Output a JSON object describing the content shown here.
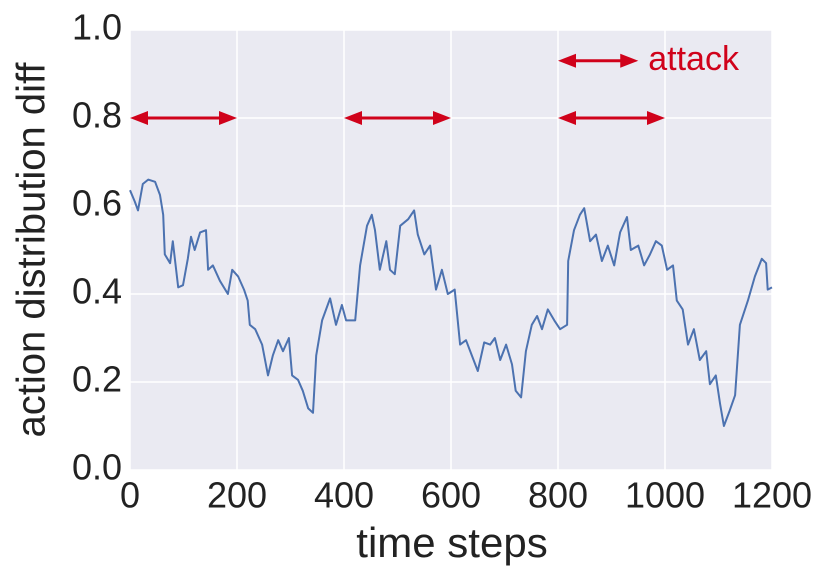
{
  "chart_data": {
    "type": "line",
    "xlabel": "time steps",
    "ylabel": "action distribution diff",
    "color": "#4c72b0",
    "x": [
      0,
      9,
      15,
      24,
      34,
      47,
      56,
      62,
      65,
      75,
      80,
      90,
      99,
      108,
      114,
      121,
      131,
      142,
      146,
      155,
      168,
      183,
      191,
      202,
      213,
      220,
      224,
      234,
      247,
      258,
      267,
      277,
      286,
      297,
      303,
      314,
      323,
      333,
      342,
      348,
      359,
      374,
      385,
      396,
      404,
      421,
      430,
      443,
      452,
      458,
      467,
      479,
      486,
      495,
      505,
      520,
      531,
      538,
      550,
      561,
      572,
      583,
      594,
      607,
      617,
      628,
      639,
      650,
      662,
      673,
      682,
      692,
      703,
      714,
      721,
      731,
      740,
      751,
      761,
      770,
      781,
      793,
      804,
      817,
      819,
      830,
      841,
      849,
      860,
      871,
      882,
      893,
      905,
      916,
      929,
      936,
      950,
      961,
      972,
      983,
      994,
      1004,
      1015,
      1022,
      1033,
      1043,
      1054,
      1065,
      1077,
      1084,
      1095,
      1103,
      1110,
      1121,
      1131,
      1140,
      1155,
      1168,
      1181,
      1189,
      1192,
      1200
    ],
    "values": [
      0.636,
      0.61,
      0.59,
      0.65,
      0.66,
      0.655,
      0.625,
      0.58,
      0.49,
      0.47,
      0.52,
      0.415,
      0.42,
      0.48,
      0.53,
      0.5,
      0.54,
      0.545,
      0.455,
      0.465,
      0.43,
      0.4,
      0.455,
      0.44,
      0.41,
      0.385,
      0.33,
      0.32,
      0.285,
      0.215,
      0.26,
      0.295,
      0.27,
      0.3,
      0.215,
      0.205,
      0.18,
      0.14,
      0.13,
      0.26,
      0.34,
      0.39,
      0.33,
      0.375,
      0.34,
      0.34,
      0.465,
      0.555,
      0.58,
      0.545,
      0.455,
      0.52,
      0.455,
      0.445,
      0.555,
      0.57,
      0.59,
      0.535,
      0.49,
      0.51,
      0.41,
      0.455,
      0.4,
      0.41,
      0.285,
      0.295,
      0.26,
      0.225,
      0.29,
      0.285,
      0.3,
      0.25,
      0.285,
      0.24,
      0.18,
      0.165,
      0.27,
      0.33,
      0.35,
      0.32,
      0.365,
      0.34,
      0.32,
      0.33,
      0.475,
      0.545,
      0.58,
      0.595,
      0.52,
      0.535,
      0.475,
      0.51,
      0.465,
      0.54,
      0.575,
      0.5,
      0.51,
      0.465,
      0.49,
      0.52,
      0.51,
      0.455,
      0.465,
      0.385,
      0.365,
      0.285,
      0.32,
      0.25,
      0.27,
      0.195,
      0.215,
      0.15,
      0.1,
      0.135,
      0.17,
      0.33,
      0.385,
      0.44,
      0.48,
      0.47,
      0.41,
      0.415
    ],
    "xlim": [
      0,
      1200
    ],
    "xticks": [
      0,
      200,
      400,
      600,
      800,
      1000,
      1200
    ],
    "ylim": [
      0,
      1
    ],
    "yticks": [
      {
        "value": 0,
        "label": "0.0"
      },
      0.2,
      0.4,
      0.6,
      0.8,
      {
        "value": 1,
        "label": "1.0"
      }
    ],
    "grid": true,
    "arrow_color": "#d0021b",
    "arrows": [
      {
        "x": [
          0,
          200
        ],
        "y": 0.8
      },
      {
        "x": [
          400,
          600
        ],
        "y": 0.8
      },
      {
        "x": [
          800,
          1000
        ],
        "y": 0.8
      }
    ],
    "legend": {
      "text": "attack",
      "x": [
        800,
        950
      ],
      "y": 0.93
    }
  }
}
